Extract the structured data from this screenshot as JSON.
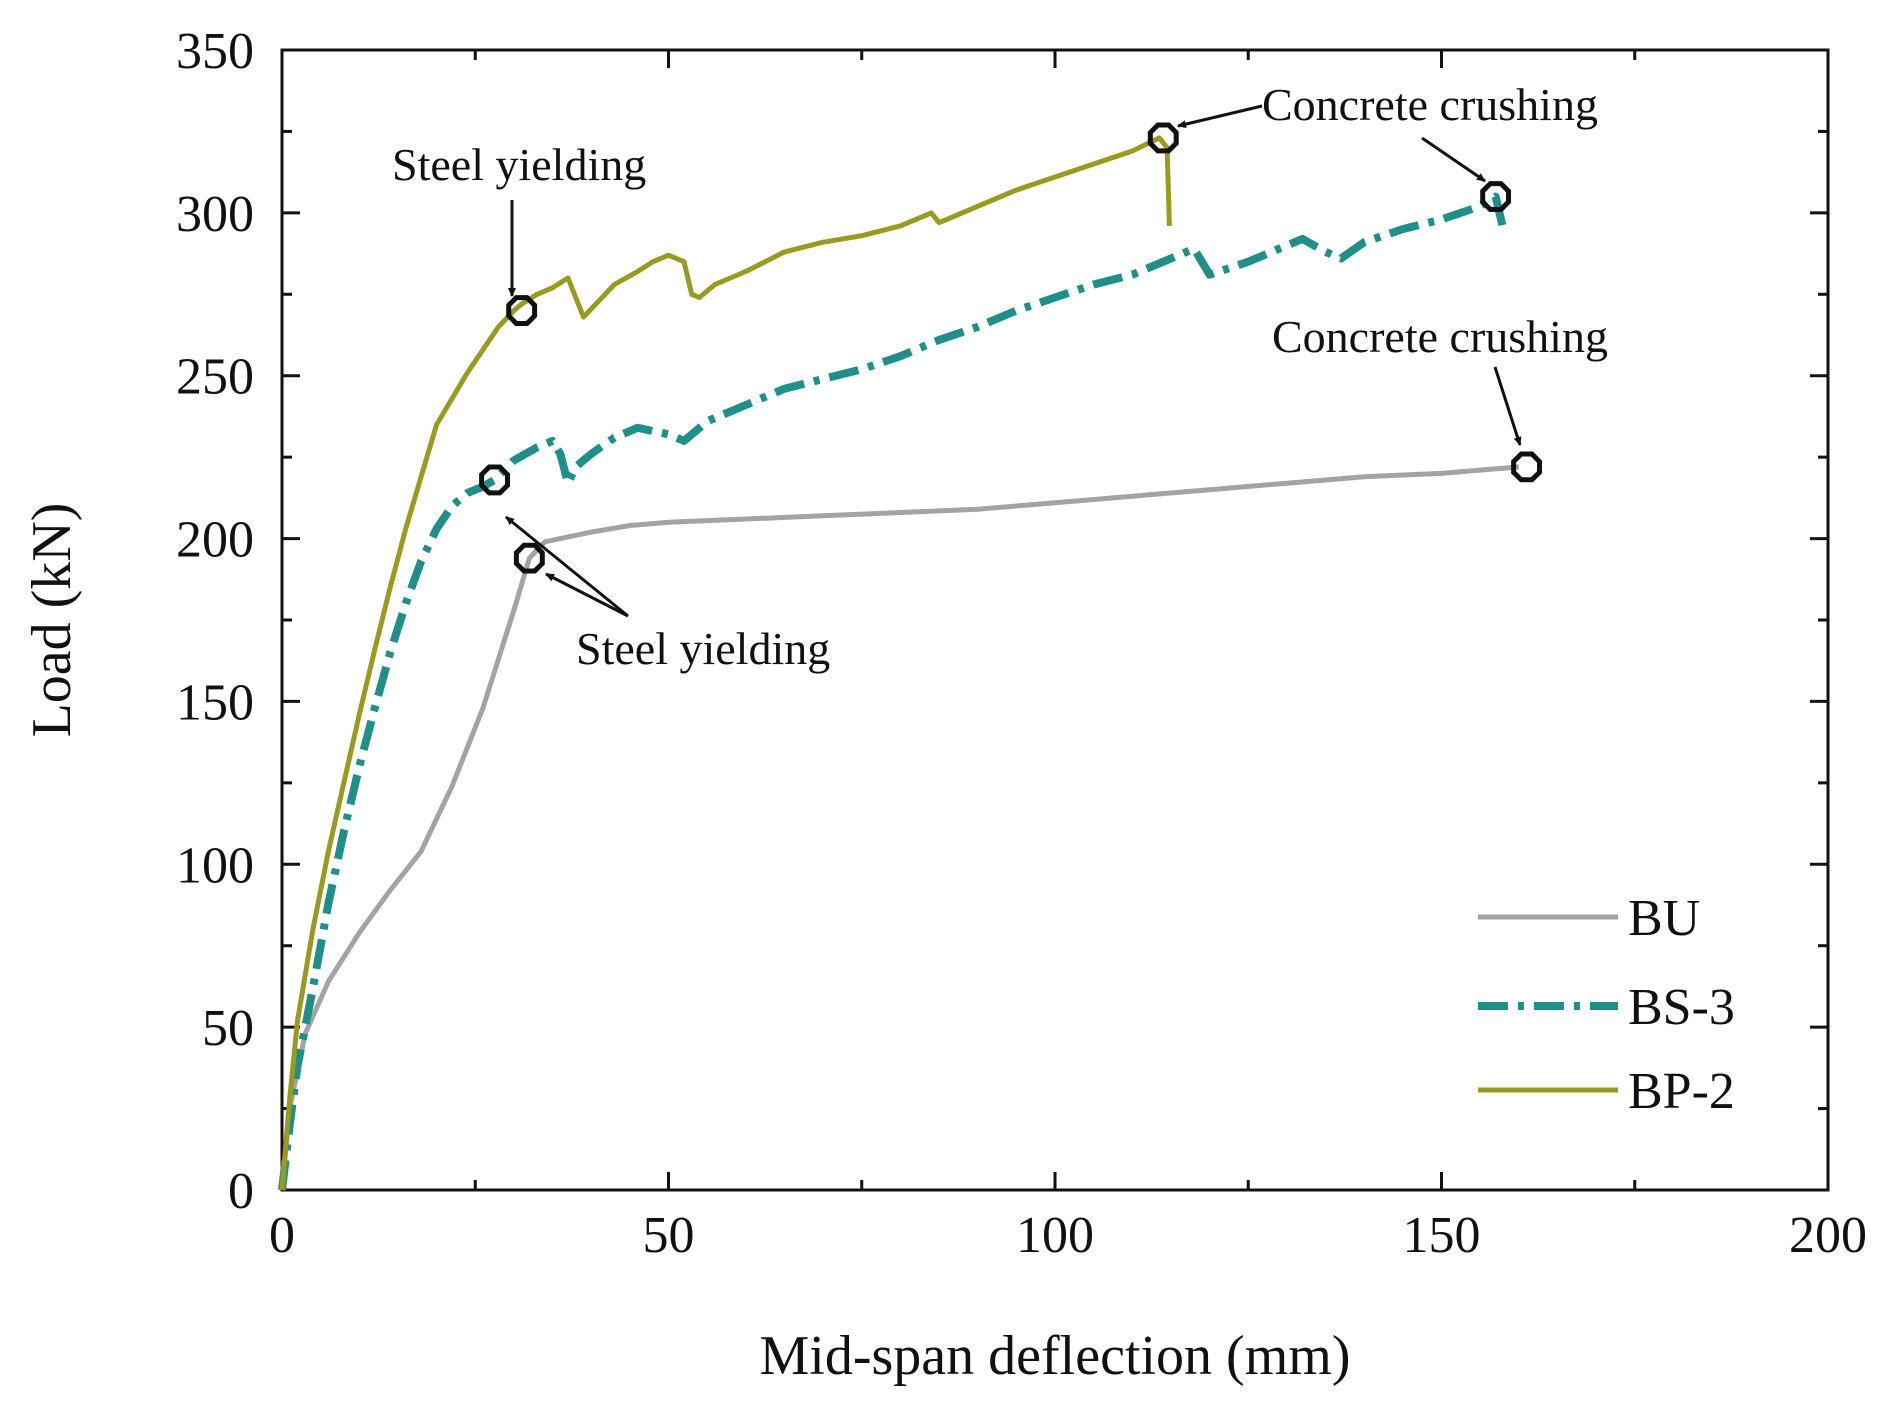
{
  "chart_data": {
    "type": "line",
    "title": "",
    "xlabel": "Mid-span deflection (mm)",
    "ylabel": "Load (kN)",
    "xlim": [
      0,
      200
    ],
    "ylim": [
      0,
      350
    ],
    "xticks": [
      0,
      50,
      100,
      150,
      200
    ],
    "yticks": [
      0,
      50,
      100,
      150,
      200,
      250,
      300,
      350
    ],
    "grid": false,
    "legend_position": "bottom-right",
    "series": [
      {
        "name": "BU",
        "color": "#a3a3a3",
        "style": "solid",
        "x": [
          0,
          1,
          3,
          6,
          10,
          14,
          18,
          22,
          26,
          30,
          32,
          34,
          36,
          40,
          45,
          50,
          60,
          70,
          80,
          90,
          95,
          100,
          110,
          120,
          130,
          140,
          150,
          160
        ],
        "y": [
          0,
          25,
          48,
          64,
          79,
          92,
          104,
          124,
          148,
          178,
          194,
          199,
          200,
          202,
          204,
          205,
          206,
          207,
          208,
          209,
          210,
          211,
          213,
          215,
          217,
          219,
          220,
          222
        ]
      },
      {
        "name": "BS-3",
        "color": "#1f8f8a",
        "style": "dashdot",
        "x": [
          0,
          1,
          2,
          4,
          6,
          8,
          10,
          12,
          14,
          16,
          18,
          20,
          22,
          24,
          26,
          27.5,
          30,
          33,
          35,
          36,
          37,
          38,
          40,
          43,
          46,
          50,
          52,
          55,
          60,
          65,
          70,
          75,
          80,
          85,
          90,
          95,
          100,
          105,
          110,
          115,
          118,
          120,
          125,
          130,
          132,
          135,
          137,
          140,
          145,
          150,
          155,
          157,
          158
        ],
        "y": [
          0,
          20,
          38,
          62,
          88,
          110,
          130,
          148,
          165,
          180,
          193,
          203,
          210,
          214,
          216,
          218,
          224,
          228,
          230,
          226,
          217,
          222,
          226,
          231,
          234,
          232,
          230,
          236,
          241,
          246,
          249,
          252,
          256,
          261,
          265,
          270,
          274,
          278,
          281,
          286,
          289,
          281,
          285,
          290,
          292,
          288,
          286,
          291,
          295,
          298,
          302,
          305,
          295
        ]
      },
      {
        "name": "BP-2",
        "color": "#9a9a1e",
        "style": "solid",
        "x": [
          0,
          1,
          2,
          4,
          6,
          8,
          10,
          12,
          14,
          16,
          18,
          20,
          22,
          24,
          26,
          28,
          30,
          31,
          33,
          35,
          37,
          39,
          41,
          43,
          46,
          48,
          50,
          52,
          53,
          54,
          56,
          60,
          65,
          70,
          75,
          80,
          84,
          85,
          86,
          90,
          95,
          100,
          105,
          110,
          113.5,
          114.5,
          114.8
        ],
        "y": [
          0,
          28,
          52,
          80,
          104,
          125,
          146,
          166,
          185,
          203,
          219,
          235,
          243,
          251,
          258,
          265,
          270,
          272,
          275,
          277,
          280,
          268,
          273,
          278,
          282,
          285,
          287,
          285,
          275,
          274,
          278,
          282,
          288,
          291,
          293,
          296,
          300,
          297,
          298,
          302,
          307,
          311,
          315,
          319,
          323,
          320,
          296
        ]
      }
    ],
    "markers": [
      {
        "series": "BP-2",
        "x": 31,
        "y": 270,
        "label": "Steel yielding"
      },
      {
        "series": "BP-2",
        "x": 114,
        "y": 323,
        "label": "Concrete crushing"
      },
      {
        "series": "BS-3",
        "x": 27.5,
        "y": 218,
        "label": "Steel yielding"
      },
      {
        "series": "BS-3",
        "x": 157,
        "y": 305,
        "label": "Concrete crushing"
      },
      {
        "series": "BU",
        "x": 32,
        "y": 194,
        "label": "Steel yielding"
      },
      {
        "series": "BU",
        "x": 161,
        "y": 222,
        "label": "Concrete crushing"
      }
    ],
    "annotations": [
      {
        "id": "steel-yielding-top",
        "text": "Steel yielding",
        "x": 31,
        "y": 308
      },
      {
        "id": "concrete-crushing-top",
        "text": "Concrete crushing",
        "x": 115,
        "y": 327
      },
      {
        "id": "concrete-crushing-mid",
        "text": "Concrete crushing",
        "x": 141,
        "y": 257
      },
      {
        "id": "steel-yielding-bottom",
        "text": "Steel yielding",
        "x": 39,
        "y": 161
      }
    ]
  }
}
